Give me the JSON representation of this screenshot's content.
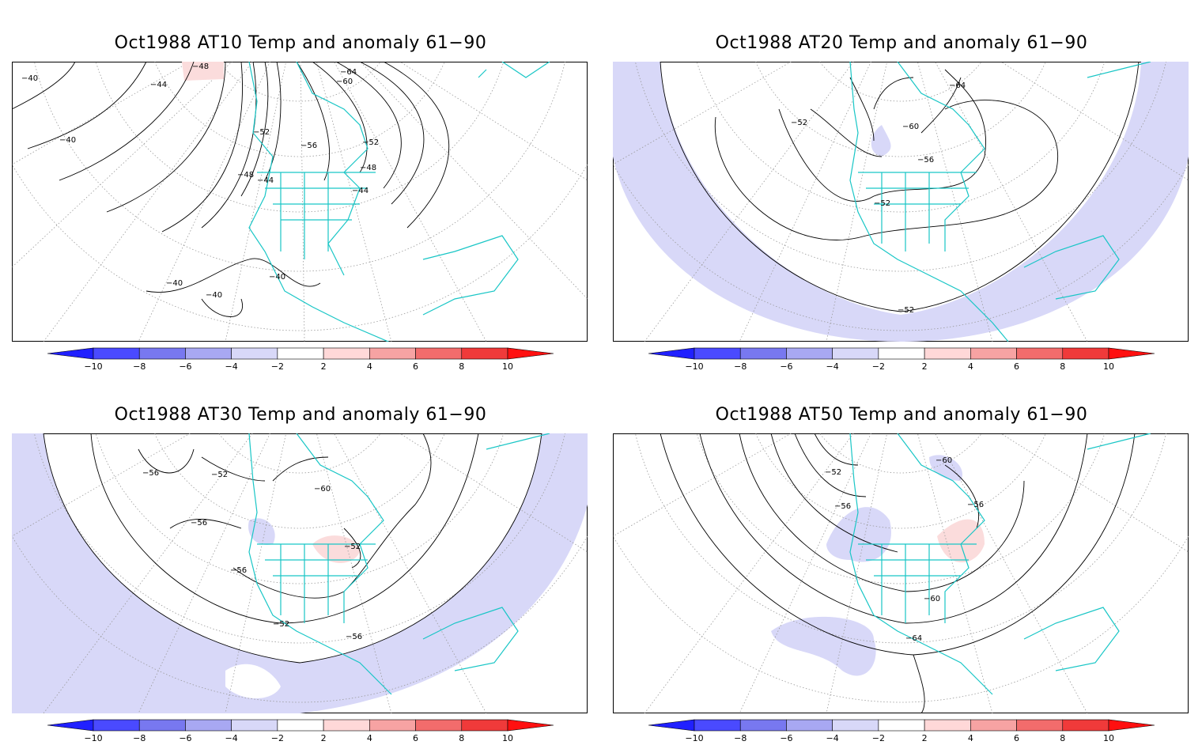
{
  "colorbar": {
    "ticks": [
      "−10",
      "−8",
      "−6",
      "−4",
      "−2",
      "2",
      "4",
      "6",
      "8",
      "10"
    ],
    "colors": [
      "#2020ff",
      "#4a4aff",
      "#7878f0",
      "#a8a8f2",
      "#d8d8f8",
      "#ffffff",
      "#ffd8d8",
      "#f7a3a3",
      "#f26c6c",
      "#f03a3a",
      "#ff1010"
    ]
  },
  "colors": {
    "coast": "#19c6c6",
    "neg_anom": "#d8d8f8",
    "pos_anom": "#fbdcdc",
    "contour": "#000000",
    "grid": "#9a9a9a"
  },
  "panels": [
    {
      "id": "at10",
      "title": "Oct1988 AT10 Temp and anomaly 61−90",
      "labels": [
        "−64",
        "−60",
        "−56",
        "−52",
        "−48",
        "−44",
        "−48",
        "−52",
        "−44",
        "−40",
        "−40",
        "−40",
        "−40",
        "−40",
        "−44",
        "−48"
      ]
    },
    {
      "id": "at20",
      "title": "Oct1988 AT20 Temp and anomaly 61−90",
      "labels": [
        "−64",
        "−60",
        "−56",
        "−52",
        "−52",
        "−52"
      ]
    },
    {
      "id": "at30",
      "title": "Oct1988 AT30 Temp and anomaly 61−90",
      "labels": [
        "−60",
        "−56",
        "−52",
        "−56",
        "−56",
        "−52",
        "−52",
        "−56"
      ]
    },
    {
      "id": "at50",
      "title": "Oct1988 AT50 Temp and anomaly 61−90",
      "labels": [
        "−60",
        "−52",
        "−56",
        "−56",
        "−60",
        "−64"
      ]
    }
  ]
}
